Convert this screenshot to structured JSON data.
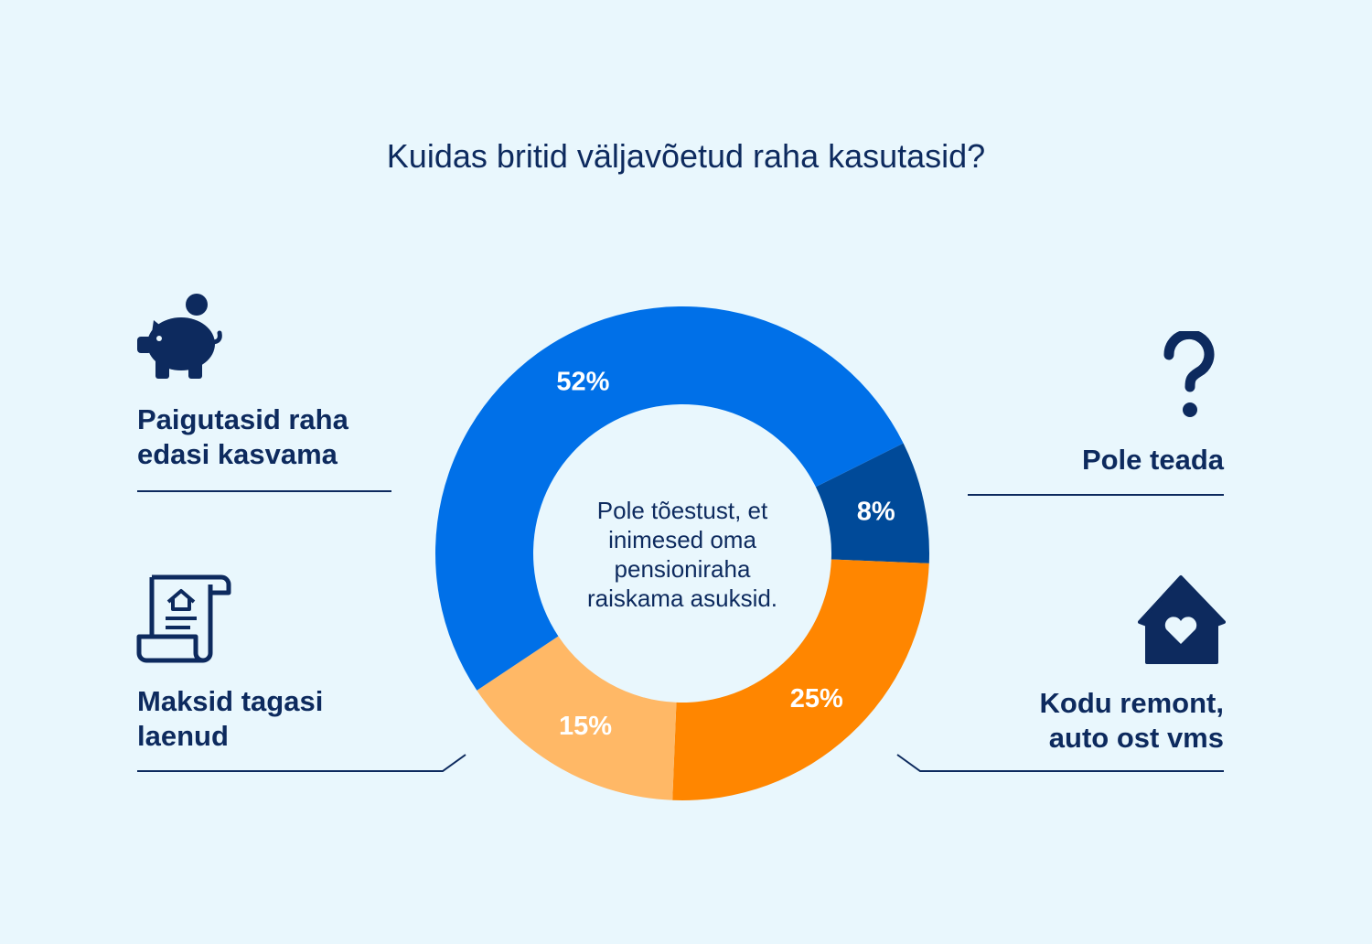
{
  "chart_data": {
    "type": "pie",
    "title": "Kuidas britid väljavõetud raha kasutasid?",
    "center_text": "Pole tõestust, et inimesed oma pensioniraha raiskama asuksid.",
    "slices": [
      {
        "label": "Pole teada",
        "value": 8,
        "value_label": "8%",
        "color": "#004a99",
        "icon": "question-mark-icon"
      },
      {
        "label": "Kodu remont, auto ost vms",
        "value": 25,
        "value_label": "25%",
        "color": "#ff8600",
        "icon": "house-heart-icon"
      },
      {
        "label": "Maksid tagasi laenud",
        "value": 15,
        "value_label": "15%",
        "color": "#ffb866",
        "icon": "loan-document-icon"
      },
      {
        "label": "Paigutasid raha edasi kasvama",
        "value": 52,
        "value_label": "52%",
        "color": "#0070e8",
        "icon": "piggy-bank-icon"
      }
    ]
  },
  "labels": {
    "savings": [
      "Paigutasid raha",
      "edasi kasvama"
    ],
    "unknown": [
      "Pole teada"
    ],
    "loans": [
      "Maksid tagasi",
      "laenud"
    ],
    "home": [
      "Kodu remont,",
      "auto ost vms"
    ]
  },
  "colors": {
    "background": "#e9f7fd",
    "text": "#0d2a5e"
  }
}
